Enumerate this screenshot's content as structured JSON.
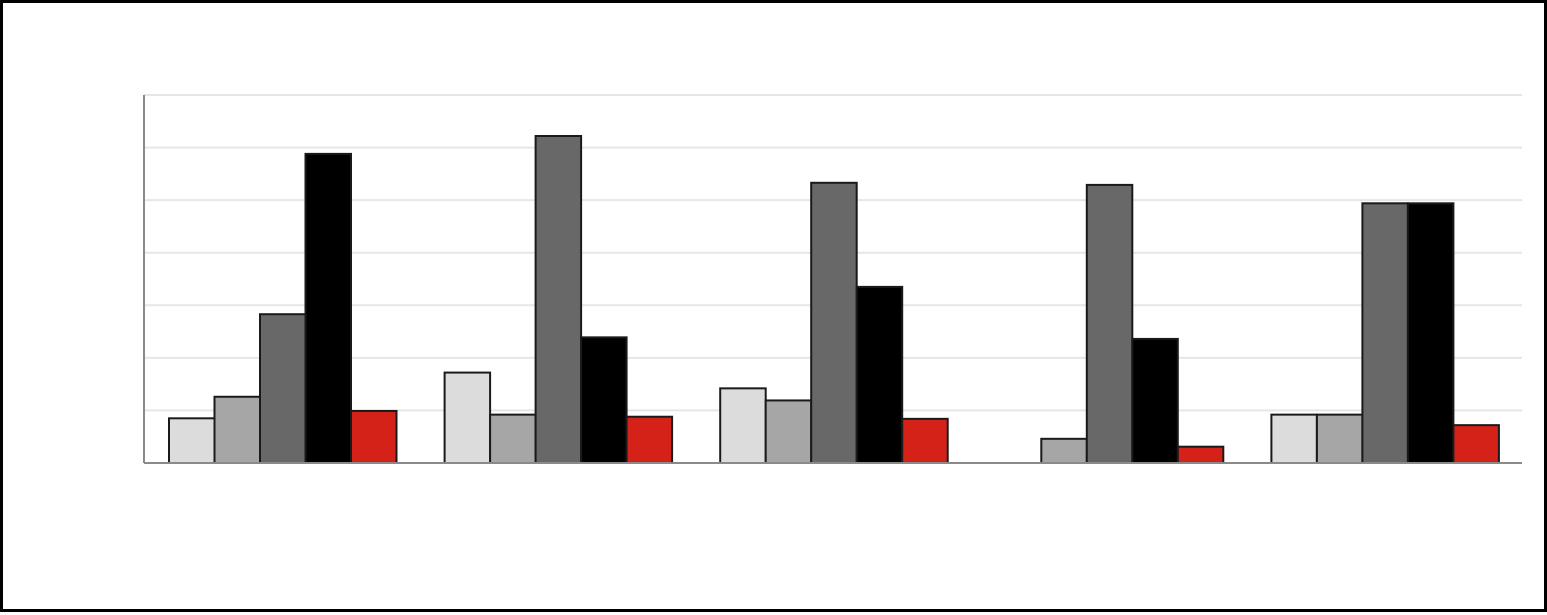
{
  "chart_data": {
    "type": "bar",
    "title": "",
    "xlabel": "",
    "ylabel": "",
    "categories": [
      "",
      "",
      "",
      "",
      ""
    ],
    "ylim": [
      0,
      70
    ],
    "grid": true,
    "gridline_values": [
      10,
      20,
      30,
      40,
      50,
      60,
      70
    ],
    "legend": "none",
    "series": [
      {
        "color": "#dcdcdc",
        "values": [
          8.5,
          17.2,
          14.2,
          0,
          9.2
        ]
      },
      {
        "color": "#a6a6a6",
        "values": [
          12.6,
          9.2,
          11.9,
          4.6,
          9.2
        ]
      },
      {
        "color": "#686868",
        "values": [
          28.3,
          62.2,
          53.3,
          52.9,
          49.4
        ]
      },
      {
        "color": "#000000",
        "values": [
          58.8,
          23.9,
          33.5,
          23.6,
          49.4
        ]
      },
      {
        "color": "#d42219",
        "values": [
          9.9,
          8.8,
          8.4,
          3.1,
          7.2
        ]
      }
    ]
  }
}
